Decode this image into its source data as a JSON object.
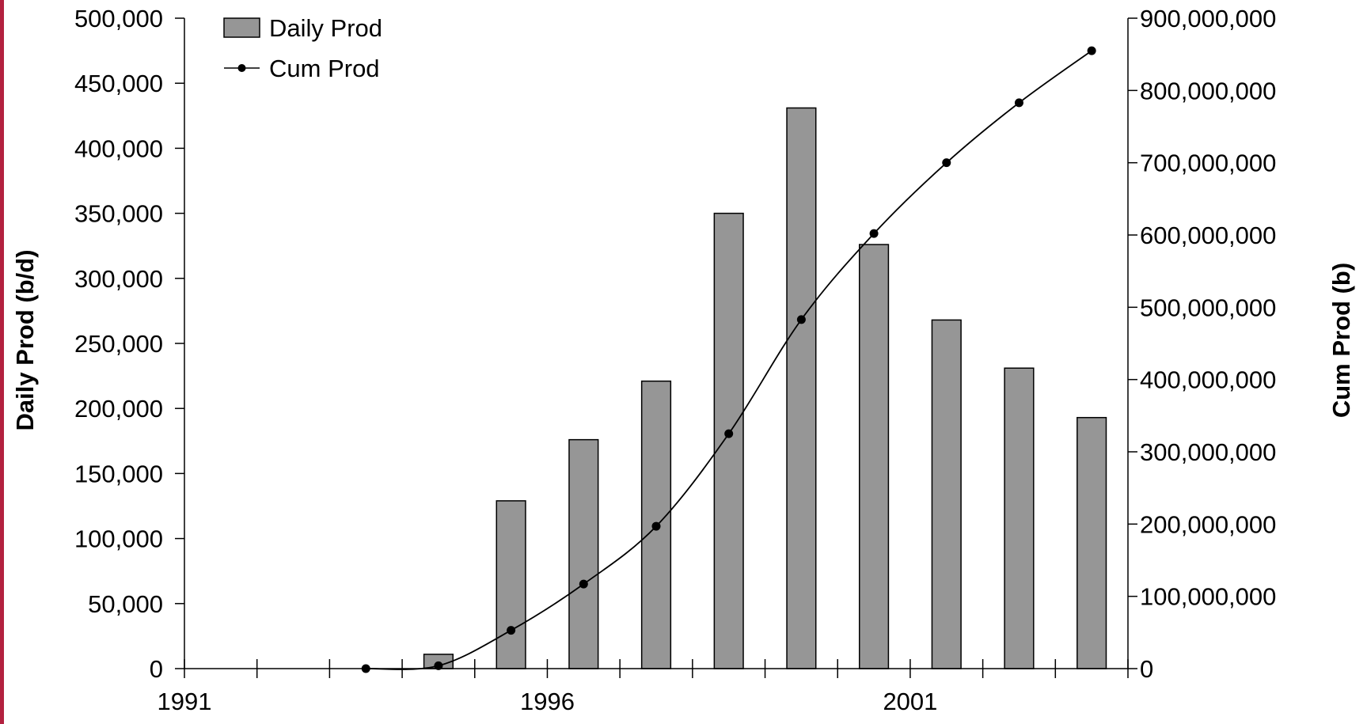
{
  "chart_data": {
    "type": "bar",
    "title": "",
    "x": [
      1993,
      1994,
      1995,
      1996,
      1997,
      1998,
      1999,
      2000,
      2001,
      2002,
      2003
    ],
    "xlim": [
      1991,
      2004
    ],
    "x_tick_labels": [
      "1991",
      "1996",
      "2001"
    ],
    "series": [
      {
        "name": "Daily Prod",
        "type": "bar",
        "axis": "left",
        "color": "#969696",
        "x": [
          1994,
          1995,
          1996,
          1997,
          1998,
          1999,
          2000,
          2001,
          2002,
          2003
        ],
        "values": [
          11000,
          129000,
          176000,
          221000,
          350000,
          431000,
          326000,
          268000,
          231000,
          193000
        ]
      },
      {
        "name": "Cum Prod",
        "type": "line",
        "axis": "right",
        "color": "#000000",
        "x": [
          1993,
          1994,
          1995,
          1996,
          1997,
          1998,
          1999,
          2000,
          2001,
          2002,
          2003
        ],
        "values": [
          0,
          4000000,
          53000000,
          117000000,
          197000000,
          325000000,
          483000000,
          602000000,
          700000000,
          783000000,
          855000000
        ]
      }
    ],
    "y_left": {
      "label": "Daily Prod (b/d)",
      "ylim": [
        0,
        500000
      ],
      "tick_labels": [
        "0",
        "50,000",
        "100,000",
        "150,000",
        "200,000",
        "250,000",
        "300,000",
        "350,000",
        "400,000",
        "450,000",
        "500,000"
      ]
    },
    "y_right": {
      "label": "Cum Prod (b)",
      "ylim": [
        0,
        900000000
      ],
      "tick_labels": [
        "0",
        "100,000,000",
        "200,000,000",
        "300,000,000",
        "400,000,000",
        "500,000,000",
        "600,000,000",
        "700,000,000",
        "800,000,000",
        "900,000,000"
      ]
    },
    "grid": false,
    "legend": {
      "placement": "top-left",
      "entries": [
        "Daily Prod",
        "Cum Prod"
      ]
    }
  },
  "colors": {
    "accent": "#b3213f",
    "bar": "#969696",
    "line": "#000000"
  }
}
